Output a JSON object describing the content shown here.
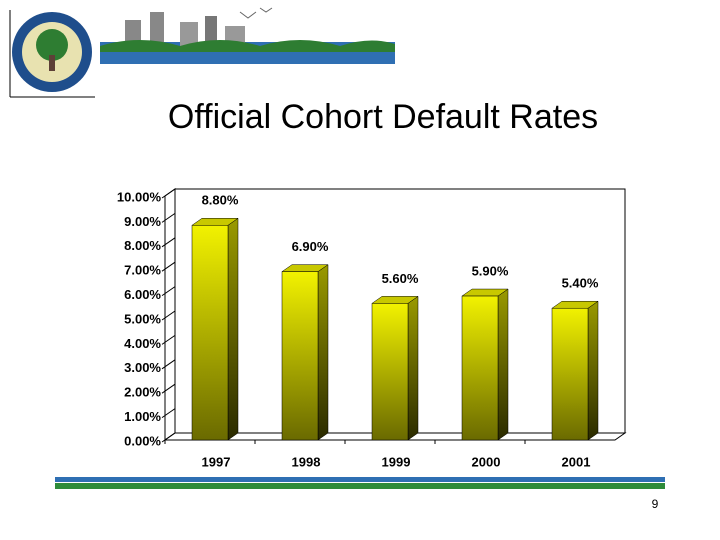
{
  "chart_data": {
    "type": "bar3d",
    "title": "Official Cohort Default Rates",
    "categories": [
      "1997",
      "1998",
      "1999",
      "2000",
      "2001"
    ],
    "values": [
      8.8,
      6.9,
      5.6,
      5.9,
      5.4
    ],
    "value_labels": [
      "8.80%",
      "6.90%",
      "5.60%",
      "5.90%",
      "5.40%"
    ],
    "color": "#e0e000",
    "ylim": [
      0,
      10
    ],
    "yticks": [
      {
        "value": 0,
        "label": "0.00%"
      },
      {
        "value": 1,
        "label": "1.00%"
      },
      {
        "value": 2,
        "label": "2.00%"
      },
      {
        "value": 3,
        "label": "3.00%"
      },
      {
        "value": 4,
        "label": "4.00%"
      },
      {
        "value": 5,
        "label": "5.00%"
      },
      {
        "value": 6,
        "label": "6.00%"
      },
      {
        "value": 7,
        "label": "7.00%"
      },
      {
        "value": 8,
        "label": "8.00%"
      },
      {
        "value": 9,
        "label": "9.00%"
      },
      {
        "value": 10,
        "label": "10.00%"
      }
    ],
    "grid": false
  },
  "page_number": "9"
}
